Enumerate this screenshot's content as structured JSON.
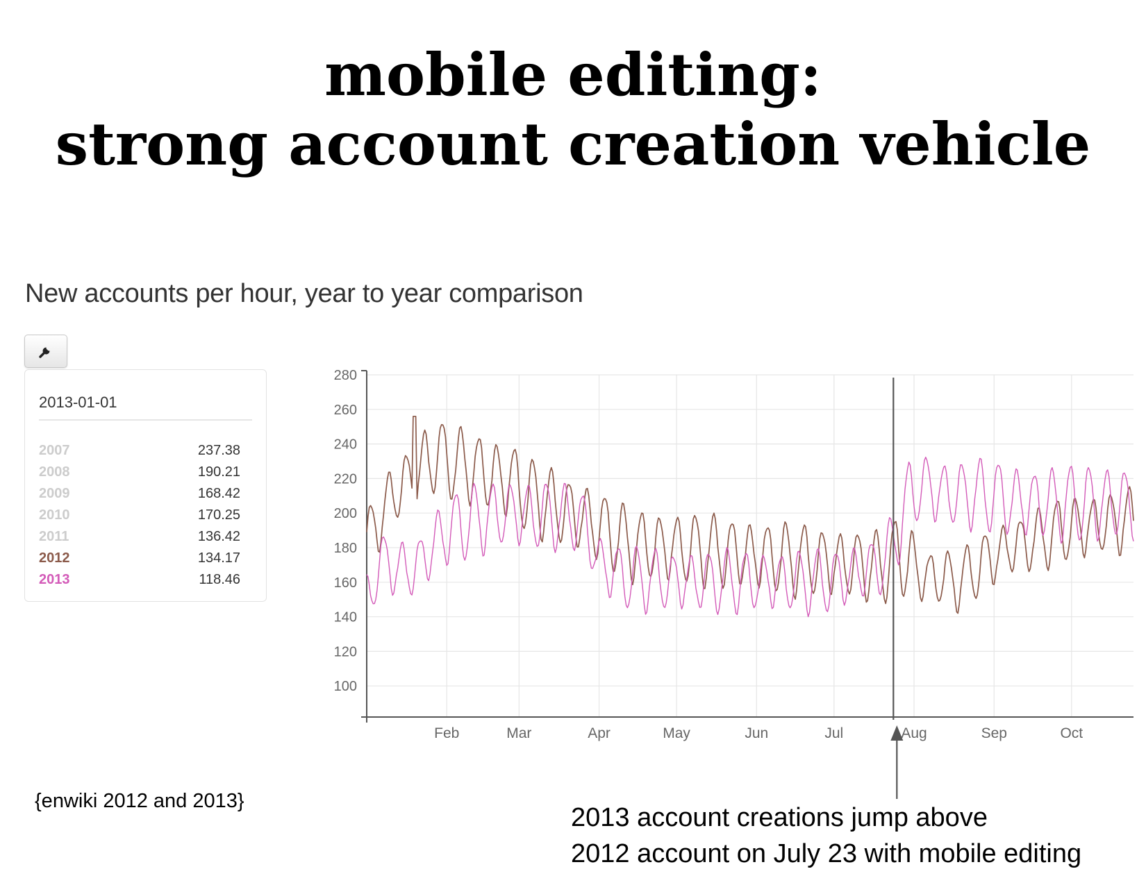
{
  "slide": {
    "title_line1": "mobile editing:",
    "title_line2": "strong account creation vehicle"
  },
  "chart_heading": "New accounts per hour, year to year comparison",
  "toolbar": {
    "settings_icon": "wrench-icon"
  },
  "legend": {
    "date": "2013-01-01",
    "rows": [
      {
        "year": "2007",
        "value": "237.38",
        "color": "#cccccc"
      },
      {
        "year": "2008",
        "value": "190.21",
        "color": "#cccccc"
      },
      {
        "year": "2009",
        "value": "168.42",
        "color": "#cccccc"
      },
      {
        "year": "2010",
        "value": "170.25",
        "color": "#cccccc"
      },
      {
        "year": "2011",
        "value": "136.42",
        "color": "#cccccc"
      },
      {
        "year": "2012",
        "value": "134.17",
        "color": "#8b5a4a"
      },
      {
        "year": "2013",
        "value": "118.46",
        "color": "#d35ab8"
      }
    ]
  },
  "chart_data": {
    "type": "line",
    "title": "New accounts per hour, year to year comparison",
    "xlabel": "",
    "ylabel": "",
    "ylim": [
      82,
      280
    ],
    "y_ticks": [
      100,
      120,
      140,
      160,
      180,
      200,
      220,
      240,
      260,
      280
    ],
    "x_ticks": [
      {
        "label": "Feb",
        "day": 31
      },
      {
        "label": "Mar",
        "day": 59
      },
      {
        "label": "Apr",
        "day": 90
      },
      {
        "label": "May",
        "day": 120
      },
      {
        "label": "Jun",
        "day": 151
      },
      {
        "label": "Jul",
        "day": 181
      },
      {
        "label": "Aug",
        "day": 212
      },
      {
        "label": "Sep",
        "day": 243
      },
      {
        "label": "Oct",
        "day": 273
      }
    ],
    "xlim_days": [
      0,
      297
    ],
    "grid": true,
    "legend_placement": "left panel",
    "series": [
      {
        "name": "2012",
        "color": "#8b5a4a",
        "anchors": [
          [
            0,
            182
          ],
          [
            8,
            205
          ],
          [
            15,
            218
          ],
          [
            19,
            218
          ],
          [
            23,
            230
          ],
          [
            28,
            232
          ],
          [
            35,
            228
          ],
          [
            42,
            225
          ],
          [
            50,
            220
          ],
          [
            56,
            218
          ],
          [
            62,
            210
          ],
          [
            70,
            205
          ],
          [
            78,
            200
          ],
          [
            86,
            195
          ],
          [
            94,
            188
          ],
          [
            102,
            181
          ],
          [
            110,
            180
          ],
          [
            130,
            178
          ],
          [
            150,
            175
          ],
          [
            170,
            172
          ],
          [
            185,
            170
          ],
          [
            200,
            168
          ],
          [
            205,
            175
          ],
          [
            210,
            170
          ],
          [
            215,
            163
          ],
          [
            222,
            162
          ],
          [
            230,
            160
          ],
          [
            240,
            172
          ],
          [
            250,
            180
          ],
          [
            260,
            184
          ],
          [
            270,
            190
          ],
          [
            280,
            192
          ],
          [
            290,
            194
          ],
          [
            297,
            195
          ]
        ],
        "amplitude": [
          [
            0,
            22
          ],
          [
            45,
            28
          ],
          [
            85,
            26
          ],
          [
            200,
            25
          ],
          [
            211,
            30
          ],
          [
            215,
            20
          ],
          [
            297,
            24
          ]
        ],
        "period_days": 7
      },
      {
        "name": "2013",
        "color": "#d35ab8",
        "anchors": [
          [
            0,
            150
          ],
          [
            5,
            170
          ],
          [
            10,
            170
          ],
          [
            15,
            165
          ],
          [
            22,
            172
          ],
          [
            28,
            185
          ],
          [
            35,
            192
          ],
          [
            42,
            195
          ],
          [
            50,
            198
          ],
          [
            56,
            200
          ],
          [
            62,
            198
          ],
          [
            70,
            198
          ],
          [
            78,
            197
          ],
          [
            84,
            195
          ],
          [
            90,
            170
          ],
          [
            100,
            162
          ],
          [
            120,
            160
          ],
          [
            150,
            160
          ],
          [
            170,
            160
          ],
          [
            180,
            160
          ],
          [
            190,
            165
          ],
          [
            200,
            170
          ],
          [
            205,
            185
          ],
          [
            210,
            210
          ],
          [
            215,
            215
          ],
          [
            225,
            210
          ],
          [
            240,
            210
          ],
          [
            255,
            205
          ],
          [
            270,
            205
          ],
          [
            285,
            205
          ],
          [
            297,
            205
          ]
        ],
        "amplitude": [
          [
            0,
            18
          ],
          [
            40,
            26
          ],
          [
            90,
            22
          ],
          [
            200,
            22
          ],
          [
            211,
            24
          ],
          [
            297,
            28
          ]
        ],
        "period_days": 7
      }
    ],
    "annotation_marker": {
      "label": "Jul 23",
      "day": 204
    }
  },
  "source_note": "{enwiki 2012 and 2013}",
  "annotation": {
    "line1": "2013 account creations jump above",
    "line2": "2012 account on July 23 with mobile editing"
  }
}
